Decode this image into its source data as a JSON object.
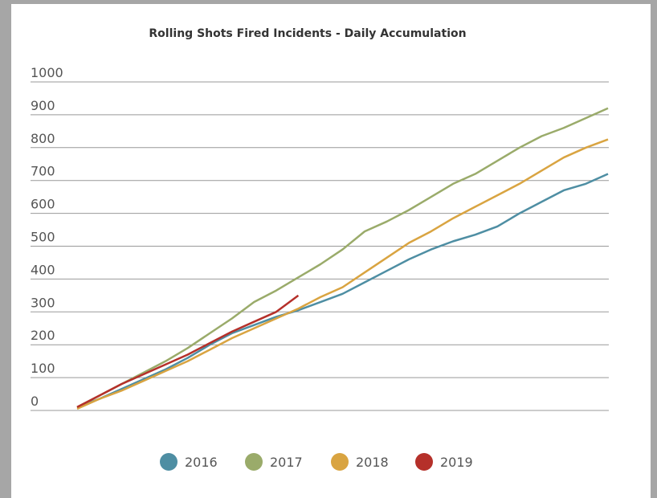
{
  "chart_data": {
    "type": "line",
    "title": "Rolling Shots Fired Incidents - Daily Accumulation",
    "ylim": [
      0,
      1000
    ],
    "yticks": [
      0,
      100,
      200,
      300,
      400,
      500,
      600,
      700,
      800,
      900,
      1000
    ],
    "grid": true,
    "legend": "bottom",
    "series": [
      {
        "name": "2016",
        "color": "#4e8ea3",
        "values": [
          10,
          35,
          65,
          95,
          125,
          160,
          200,
          235,
          260,
          285,
          305,
          330,
          355,
          390,
          425,
          460,
          490,
          515,
          535,
          560,
          600,
          635,
          670,
          690,
          720
        ]
      },
      {
        "name": "2017",
        "color": "#9aab6a",
        "values": [
          10,
          45,
          80,
          115,
          150,
          190,
          235,
          280,
          330,
          365,
          405,
          445,
          490,
          545,
          575,
          610,
          650,
          690,
          720,
          760,
          800,
          835,
          860,
          890,
          920
        ]
      },
      {
        "name": "2018",
        "color": "#d9a441",
        "values": [
          5,
          35,
          60,
          90,
          120,
          150,
          185,
          220,
          250,
          280,
          310,
          345,
          375,
          420,
          465,
          510,
          545,
          585,
          620,
          655,
          690,
          730,
          770,
          800,
          825
        ]
      },
      {
        "name": "2019",
        "color": "#b5302a",
        "values": [
          10,
          45,
          80,
          110,
          140,
          170,
          205,
          240,
          270,
          300,
          350
        ]
      }
    ]
  }
}
